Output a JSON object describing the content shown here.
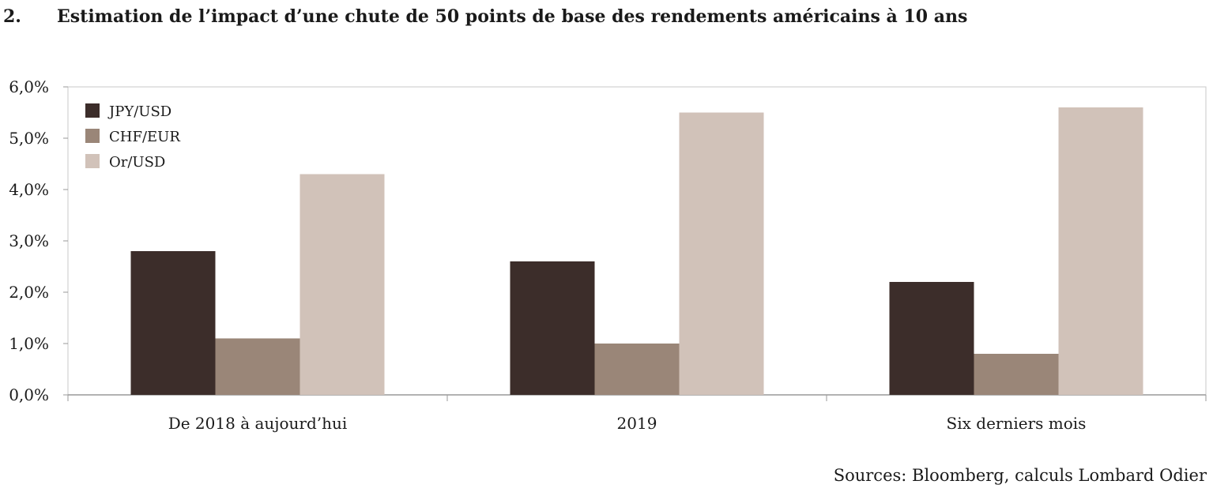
{
  "header": {
    "number": "2.",
    "title": "Estimation de l’impact d’une chute de 50 points de base des rendements américains à 10 ans"
  },
  "chart_data": {
    "type": "bar",
    "categories": [
      "De 2018 à aujourd’hui",
      "2019",
      "Six derniers mois"
    ],
    "series": [
      {
        "name": "JPY/USD",
        "color": "#3c2d2a",
        "values": [
          2.8,
          2.6,
          2.2
        ]
      },
      {
        "name": "CHF/EUR",
        "color": "#9a8678",
        "values": [
          1.1,
          1.0,
          0.8
        ]
      },
      {
        "name": "Or/USD",
        "color": "#d1c2b9",
        "values": [
          4.3,
          5.5,
          5.6
        ]
      }
    ],
    "yticks": [
      "0,0%",
      "1,0%",
      "2,0%",
      "3,0%",
      "4,0%",
      "5,0%",
      "6,0%"
    ],
    "ylim": [
      0,
      6
    ],
    "legend_position": "top-left",
    "grid": false
  },
  "footer": {
    "source": "Sources: Bloomberg, calculs Lombard Odier"
  }
}
